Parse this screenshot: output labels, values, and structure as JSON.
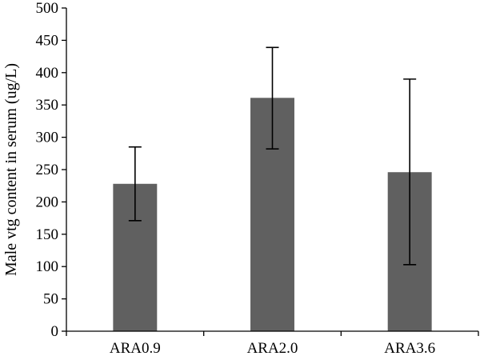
{
  "chart_data": {
    "type": "bar",
    "title": "",
    "xlabel": "",
    "ylabel": "Male vtg content in serum (ug/L)",
    "ylim": [
      0,
      500
    ],
    "yticks": [
      0,
      50,
      100,
      150,
      200,
      250,
      300,
      350,
      400,
      450,
      500
    ],
    "ytick_labels": [
      "0",
      "50",
      "100",
      "150",
      "200",
      "250",
      "300",
      "350",
      "400",
      "450",
      "500"
    ],
    "categories": [
      "ARA0.9",
      "ARA2.0",
      "ARA3.6"
    ],
    "values": [
      228,
      361,
      246
    ],
    "error_low": [
      171,
      282,
      103
    ],
    "error_high": [
      285,
      439,
      390
    ],
    "bar_color": "#606060",
    "grid": false,
    "legend": "none"
  }
}
